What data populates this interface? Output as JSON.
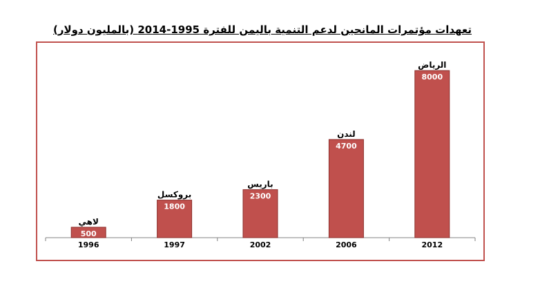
{
  "chart_data": {
    "type": "bar",
    "title": "تعهدات مؤتمرات المانحين لدعم التنمية باليمن للفترة 1995-2014  (بالمليون دولار)",
    "categories": [
      "1996",
      "1997",
      "2002",
      "2006",
      "2012"
    ],
    "values": [
      500,
      1800,
      2300,
      4700,
      8000
    ],
    "bar_labels": [
      "لاهي",
      "بروكسل",
      "باريس",
      "لندن",
      "الرياض"
    ],
    "value_labels": [
      "500",
      "1800",
      "2300",
      "4700",
      "8000"
    ],
    "xlabel": "",
    "ylabel": "",
    "ylim": [
      0,
      8600
    ],
    "grid": false,
    "bar_color": "#c0504d"
  }
}
